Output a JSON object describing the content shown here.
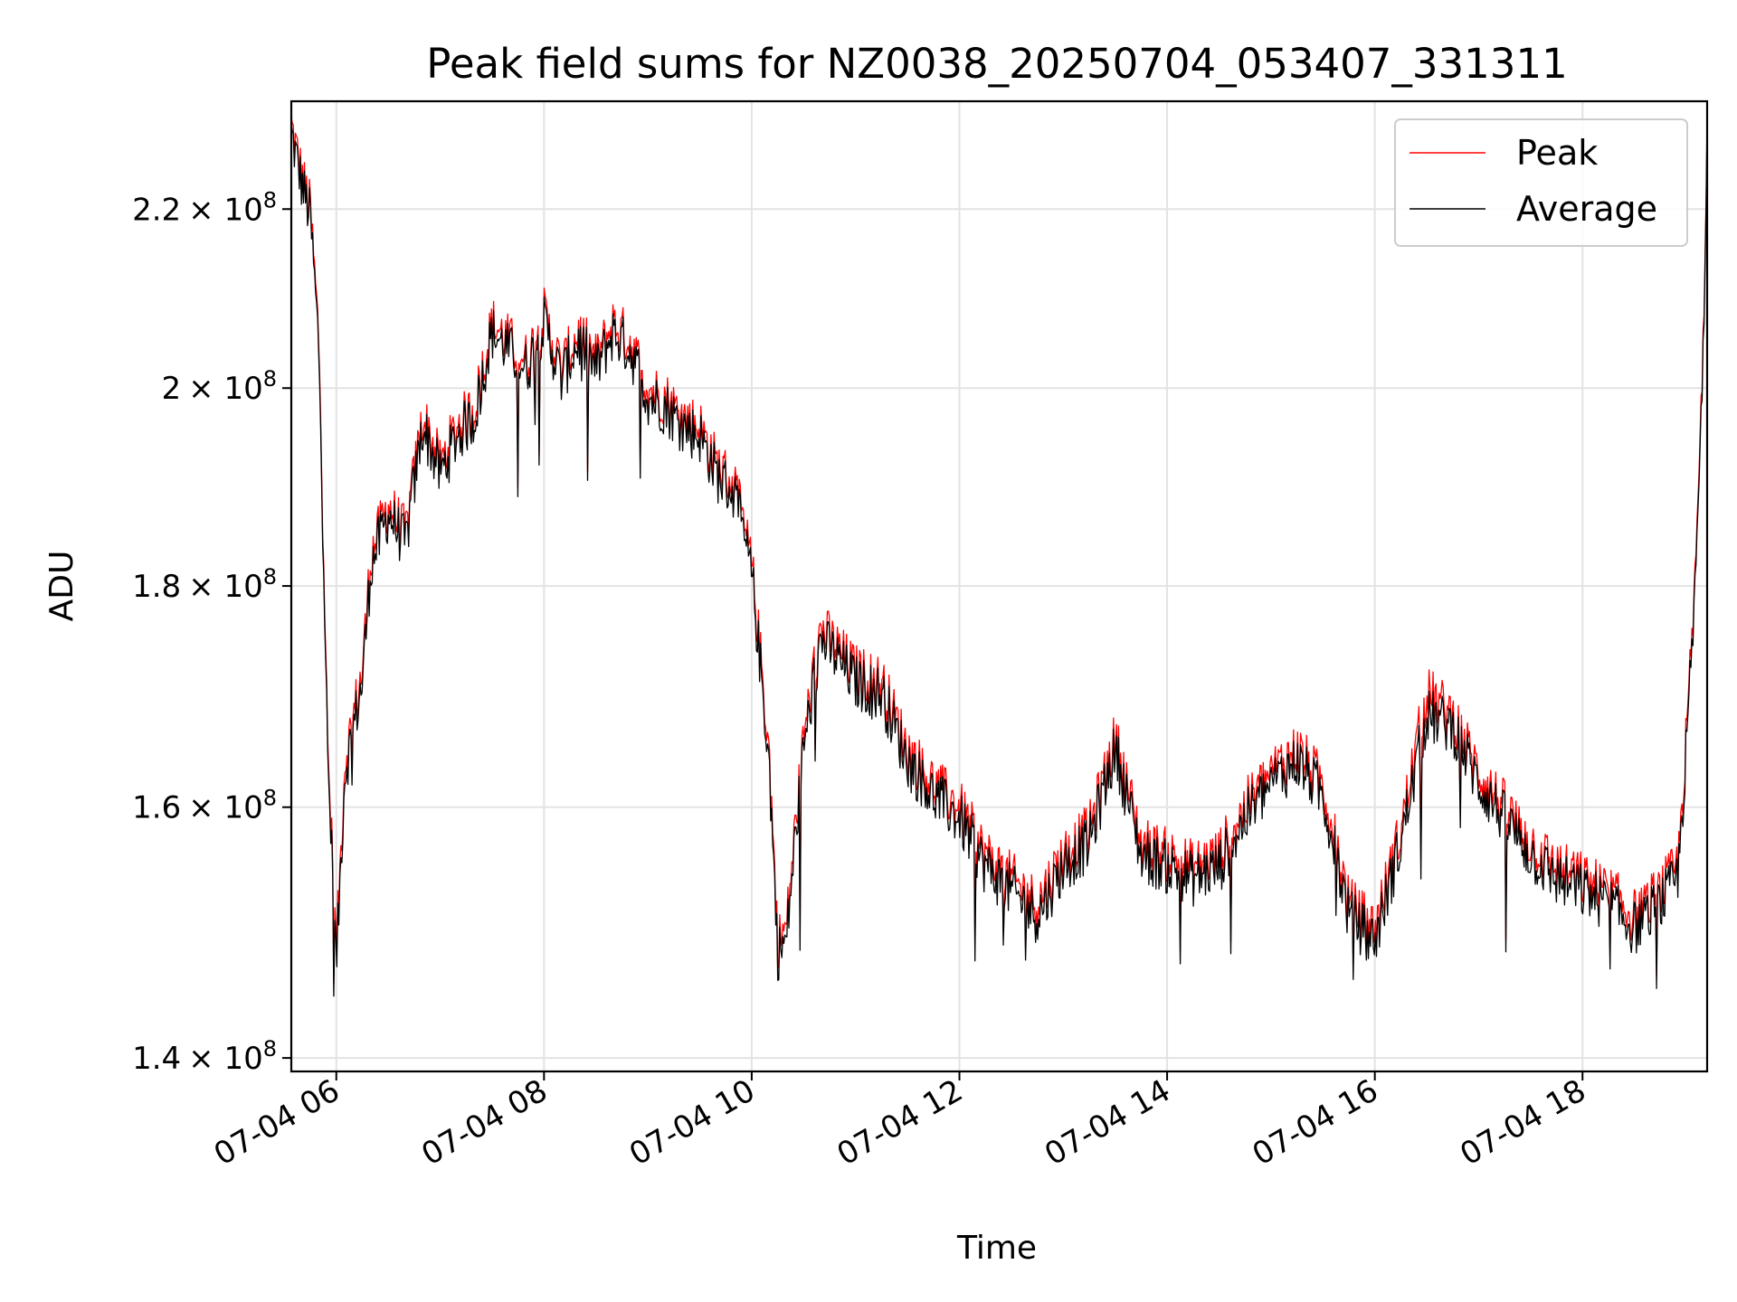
{
  "chart_data": {
    "type": "line",
    "title": "Peak field sums for NZ0038_20250704_053407_331311",
    "xlabel": "Time",
    "ylabel": "ADU",
    "y_scale": "log",
    "xlim": [
      "07-04 05:34",
      "07-04 19:12"
    ],
    "ylim": [
      139000000,
      233000000
    ],
    "grid": true,
    "legend_position": "top-right",
    "x_ticks": [
      "07-04 06",
      "07-04 08",
      "07-04 10",
      "07-04 12",
      "07-04 14",
      "07-04 16",
      "07-04 18"
    ],
    "y_ticks": [
      {
        "value": 140000000,
        "mantissa": "1.4",
        "base": "× 10",
        "exp": "8"
      },
      {
        "value": 160000000,
        "mantissa": "1.6",
        "base": "× 10",
        "exp": "8"
      },
      {
        "value": 180000000,
        "mantissa": "1.8",
        "base": "× 10",
        "exp": "8"
      },
      {
        "value": 200000000,
        "mantissa": "2",
        "base": "× 10",
        "exp": "8"
      },
      {
        "value": 220000000,
        "mantissa": "2.2",
        "base": "× 10",
        "exp": "8"
      }
    ],
    "x": [
      "07-04 05:34",
      "07-04 05:40",
      "07-04 05:45",
      "07-04 05:50",
      "07-04 05:55",
      "07-04 06:00",
      "07-04 06:05",
      "07-04 06:10",
      "07-04 06:15",
      "07-04 06:20",
      "07-04 06:30",
      "07-04 06:40",
      "07-04 06:50",
      "07-04 07:00",
      "07-04 07:10",
      "07-04 07:20",
      "07-04 07:30",
      "07-04 07:40",
      "07-04 07:50",
      "07-04 08:00",
      "07-04 08:10",
      "07-04 08:20",
      "07-04 08:30",
      "07-04 08:40",
      "07-04 08:50",
      "07-04 09:00",
      "07-04 09:10",
      "07-04 09:20",
      "07-04 09:30",
      "07-04 09:40",
      "07-04 09:50",
      "07-04 10:00",
      "07-04 10:10",
      "07-04 10:15",
      "07-04 10:20",
      "07-04 10:30",
      "07-04 10:40",
      "07-04 10:50",
      "07-04 11:00",
      "07-04 11:15",
      "07-04 11:30",
      "07-04 11:45",
      "07-04 12:00",
      "07-04 12:15",
      "07-04 12:30",
      "07-04 12:45",
      "07-04 13:00",
      "07-04 13:15",
      "07-04 13:30",
      "07-04 13:45",
      "07-04 14:00",
      "07-04 14:15",
      "07-04 14:30",
      "07-04 14:45",
      "07-04 15:00",
      "07-04 15:15",
      "07-04 15:30",
      "07-04 15:45",
      "07-04 16:00",
      "07-04 16:15",
      "07-04 16:30",
      "07-04 16:45",
      "07-04 17:00",
      "07-04 17:15",
      "07-04 17:30",
      "07-04 17:45",
      "07-04 18:00",
      "07-04 18:15",
      "07-04 18:30",
      "07-04 18:45",
      "07-04 18:55",
      "07-04 19:00",
      "07-04 19:05",
      "07-04 19:10",
      "07-04 19:12"
    ],
    "series": [
      {
        "name": "Peak",
        "color": "#ff0000",
        "values": [
          230000000,
          224000000,
          220000000,
          205000000,
          165000000,
          148000000,
          164000000,
          168000000,
          172000000,
          183000000,
          188000000,
          185000000,
          197000000,
          192000000,
          196000000,
          198000000,
          207000000,
          205000000,
          203000000,
          208000000,
          202000000,
          206000000,
          203000000,
          207000000,
          205000000,
          200000000,
          199000000,
          197000000,
          196000000,
          192000000,
          190000000,
          182000000,
          165000000,
          149000000,
          150000000,
          166000000,
          176000000,
          174000000,
          172000000,
          171000000,
          165000000,
          162000000,
          160000000,
          156000000,
          154000000,
          152000000,
          156000000,
          158000000,
          166000000,
          157000000,
          156000000,
          155000000,
          156000000,
          160000000,
          163000000,
          165000000,
          162000000,
          152000000,
          150000000,
          158000000,
          170000000,
          168000000,
          163000000,
          160000000,
          157000000,
          155000000,
          154000000,
          153000000,
          151000000,
          153000000,
          155000000,
          166000000,
          180000000,
          205000000,
          233000000
        ]
      },
      {
        "name": "Average",
        "color": "#000000",
        "values": [
          229000000,
          223000000,
          219000000,
          204000000,
          164000000,
          147000000,
          163000000,
          167000000,
          171000000,
          182000000,
          187000000,
          184000000,
          196000000,
          191000000,
          195000000,
          197000000,
          206000000,
          204000000,
          202000000,
          207000000,
          201000000,
          205000000,
          202000000,
          206000000,
          204000000,
          199000000,
          198000000,
          196000000,
          195000000,
          191000000,
          189000000,
          181000000,
          164000000,
          148000000,
          149000000,
          165000000,
          175000000,
          173000000,
          171000000,
          170000000,
          164000000,
          161000000,
          159000000,
          155000000,
          153000000,
          151000000,
          155000000,
          157000000,
          165000000,
          156000000,
          155000000,
          154000000,
          155000000,
          159000000,
          162000000,
          164000000,
          161000000,
          151000000,
          149000000,
          157000000,
          168000000,
          167000000,
          162000000,
          159000000,
          156000000,
          154000000,
          153000000,
          152000000,
          150000000,
          152000000,
          154000000,
          165000000,
          179000000,
          204000000,
          232000000
        ]
      }
    ]
  }
}
